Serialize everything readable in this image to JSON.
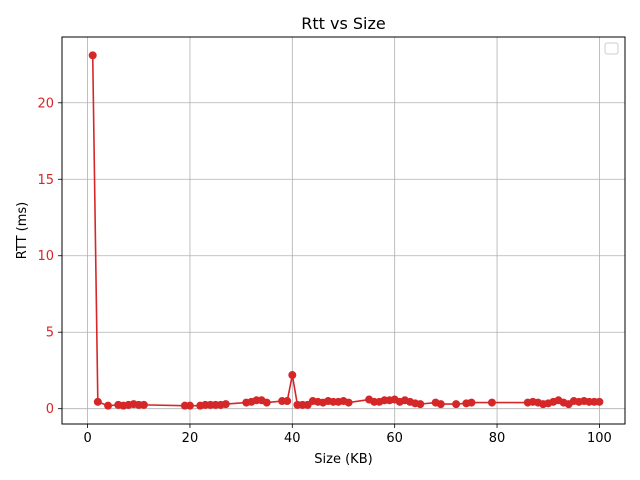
{
  "chart_data": {
    "type": "line",
    "title": "Rtt vs Size",
    "xlabel": "Size (KB)",
    "ylabel": "RTT (ms)",
    "xlim": [
      -5,
      105
    ],
    "ylim": [
      -1.0,
      24.3
    ],
    "xticks": [
      0,
      20,
      40,
      60,
      80,
      100
    ],
    "yticks": [
      0,
      5,
      10,
      15,
      20
    ],
    "grid": true,
    "legend": "top-right",
    "colors": {
      "series": "#d62728",
      "ylabel": "#d62728",
      "grid": "#b0b0b0"
    },
    "series": [
      {
        "x": [
          1,
          2,
          4,
          6,
          7,
          8,
          9,
          10,
          11,
          19,
          20,
          22,
          23,
          24,
          25,
          26,
          27,
          31,
          32,
          33,
          34,
          35,
          38,
          39,
          40,
          41,
          42,
          43,
          44,
          45,
          46,
          47,
          48,
          49,
          50,
          51,
          55,
          56,
          57,
          58,
          59,
          60,
          61,
          62,
          63,
          64,
          65,
          68,
          69,
          72,
          74,
          75,
          79,
          86,
          87,
          88,
          89,
          90,
          91,
          92,
          93,
          94,
          95,
          96,
          97,
          98,
          99,
          100
        ],
        "y": [
          23.1,
          0.45,
          0.2,
          0.25,
          0.2,
          0.25,
          0.3,
          0.25,
          0.25,
          0.2,
          0.2,
          0.2,
          0.25,
          0.25,
          0.25,
          0.25,
          0.3,
          0.4,
          0.45,
          0.55,
          0.55,
          0.4,
          0.5,
          0.5,
          2.2,
          0.25,
          0.25,
          0.25,
          0.5,
          0.45,
          0.4,
          0.5,
          0.45,
          0.45,
          0.5,
          0.4,
          0.6,
          0.45,
          0.45,
          0.55,
          0.55,
          0.6,
          0.45,
          0.55,
          0.45,
          0.35,
          0.3,
          0.4,
          0.3,
          0.3,
          0.35,
          0.4,
          0.4,
          0.4,
          0.45,
          0.4,
          0.3,
          0.35,
          0.45,
          0.55,
          0.4,
          0.3,
          0.5,
          0.45,
          0.5,
          0.45,
          0.45,
          0.45
        ]
      }
    ]
  }
}
